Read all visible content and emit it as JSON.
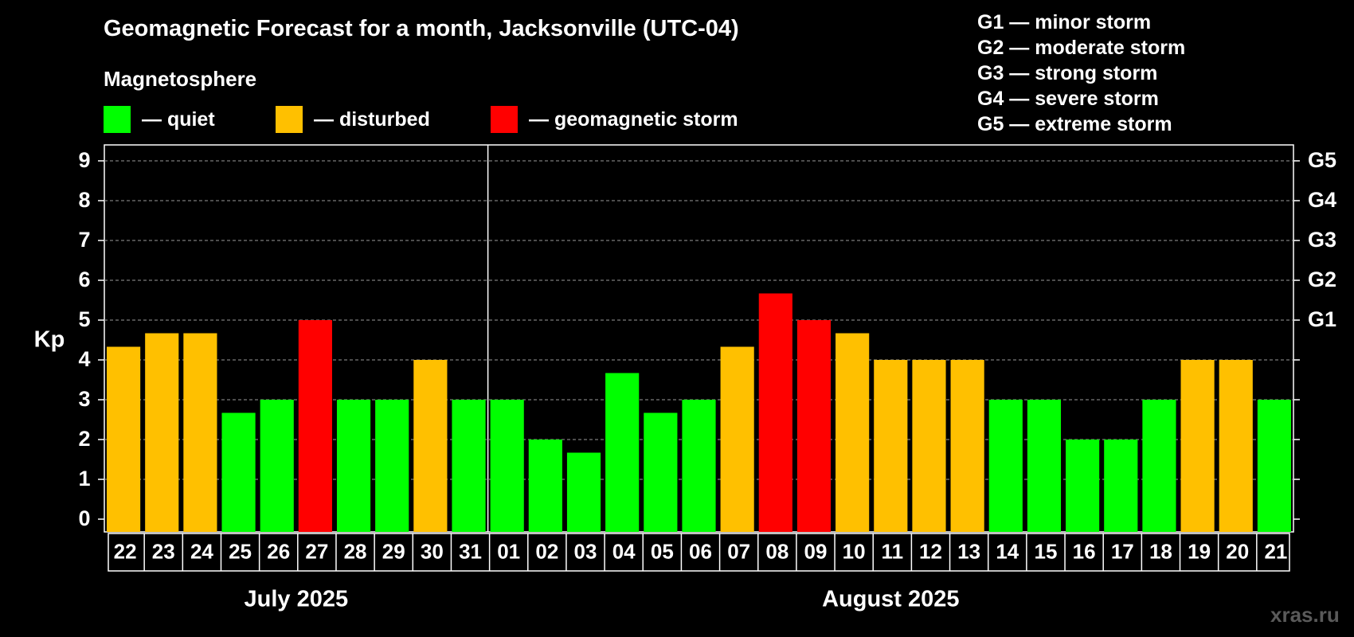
{
  "title": "Geomagnetic Forecast for a month, Jacksonville (UTC-04)",
  "subtitle": "Magnetosphere",
  "legend": [
    {
      "label": "— quiet",
      "color": "#00ff00"
    },
    {
      "label": "— disturbed",
      "color": "#ffc000"
    },
    {
      "label": "— geomagnetic storm",
      "color": "#ff0000"
    }
  ],
  "g_levels": [
    "G1 — minor storm",
    "G2 — moderate storm",
    "G3 — strong storm",
    "G4 — severe storm",
    "G5 — extreme storm"
  ],
  "watermark": "xras.ru",
  "chart_data": {
    "type": "bar",
    "ylabel": "Kp",
    "ylim": [
      0,
      9
    ],
    "yticks": [
      "0",
      "1",
      "2",
      "3",
      "4",
      "5",
      "6",
      "7",
      "8",
      "9"
    ],
    "right_ticks": [
      {
        "value": 5,
        "label": "G1"
      },
      {
        "value": 6,
        "label": "G2"
      },
      {
        "value": 7,
        "label": "G3"
      },
      {
        "value": 8,
        "label": "G4"
      },
      {
        "value": 9,
        "label": "G5"
      }
    ],
    "grid": true,
    "months": [
      {
        "label": "July 2025",
        "start": 0,
        "count": 10
      },
      {
        "label": "August 2025",
        "start": 10,
        "count": 21
      }
    ],
    "categories": [
      "22",
      "23",
      "24",
      "25",
      "26",
      "27",
      "28",
      "29",
      "30",
      "31",
      "01",
      "02",
      "03",
      "04",
      "05",
      "06",
      "07",
      "08",
      "09",
      "10",
      "11",
      "12",
      "13",
      "14",
      "15",
      "16",
      "17",
      "18",
      "19",
      "20",
      "21"
    ],
    "values": [
      4.33,
      4.67,
      4.67,
      2.67,
      3,
      5,
      3,
      3,
      4,
      3,
      3,
      2,
      1.67,
      3.67,
      2.67,
      3,
      4.33,
      5.67,
      5,
      4.67,
      4,
      4,
      4,
      3,
      3,
      2,
      2,
      3,
      4,
      4,
      3
    ],
    "levels": [
      "disturbed",
      "disturbed",
      "disturbed",
      "quiet",
      "quiet",
      "storm",
      "quiet",
      "quiet",
      "disturbed",
      "quiet",
      "quiet",
      "quiet",
      "quiet",
      "quiet",
      "quiet",
      "quiet",
      "disturbed",
      "storm",
      "storm",
      "disturbed",
      "disturbed",
      "disturbed",
      "disturbed",
      "quiet",
      "quiet",
      "quiet",
      "quiet",
      "quiet",
      "disturbed",
      "disturbed",
      "quiet"
    ],
    "colors": {
      "quiet": "#00ff00",
      "disturbed": "#ffc000",
      "storm": "#ff0000"
    }
  }
}
